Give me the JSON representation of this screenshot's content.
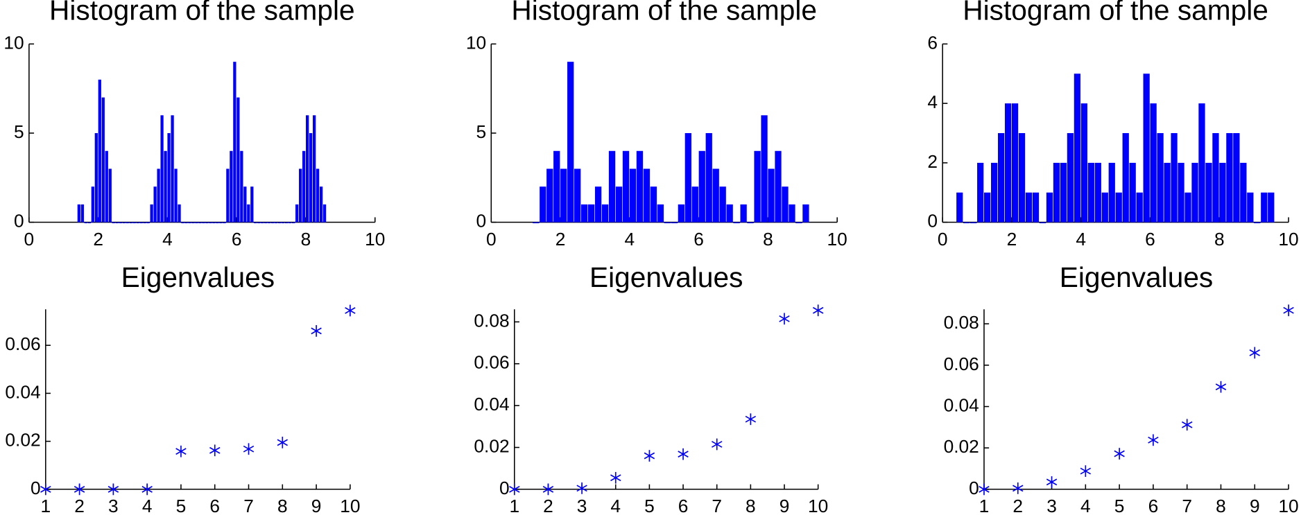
{
  "chart_data": [
    {
      "type": "histogram",
      "title": "Histogram of the sample",
      "color": "#0000ff",
      "bins": [
        1.4,
        1.5,
        1.6,
        1.7,
        1.8,
        1.9,
        2,
        2.1,
        2.2,
        2.3,
        2.4,
        2.5,
        2.6,
        2.7,
        2.8,
        2.9,
        3,
        3.1,
        3.2,
        3.3,
        3.4,
        3.5,
        3.6,
        3.7,
        3.8,
        3.9,
        4,
        4.1,
        4.2,
        4.3,
        4.4,
        4.5,
        4.6,
        4.7,
        4.8,
        4.9,
        5,
        5.1,
        5.2,
        5.3,
        5.4,
        5.5,
        5.6,
        5.7,
        5.8,
        5.9,
        6,
        6.1,
        6.2,
        6.3,
        6.4,
        6.5,
        6.6,
        6.7,
        6.8,
        6.9,
        7,
        7.1,
        7.2,
        7.3,
        7.4,
        7.5,
        7.6,
        7.7,
        7.8,
        7.9,
        8,
        8.1,
        8.2,
        8.3,
        8.4,
        8.5,
        8.6
      ],
      "values": [
        1,
        1,
        0,
        0,
        2,
        5,
        8,
        7,
        4,
        3,
        0,
        0,
        0,
        0,
        0,
        0,
        0,
        0,
        0,
        0,
        0,
        1,
        2,
        3,
        6,
        4,
        5,
        6,
        3,
        1,
        0,
        0,
        0,
        0,
        0,
        0,
        0,
        0,
        0,
        0,
        0,
        0,
        0,
        3,
        4,
        9,
        7,
        4,
        2,
        1,
        2,
        0,
        0,
        0,
        0,
        0,
        0,
        0,
        0,
        0,
        0,
        0,
        0,
        1,
        3,
        4,
        6,
        5,
        6,
        3,
        2,
        1
      ],
      "xlim": [
        0,
        10
      ],
      "xticks": [
        0,
        2,
        4,
        6,
        8,
        10
      ],
      "ylim": [
        0,
        10
      ],
      "yticks": [
        0,
        5,
        10
      ]
    },
    {
      "type": "histogram",
      "title": "Histogram of the sample",
      "color": "#0000ff",
      "bins": [
        1.2,
        1.4,
        1.6,
        1.8,
        2,
        2.2,
        2.4,
        2.6,
        2.8,
        3,
        3.2,
        3.4,
        3.6,
        3.8,
        4,
        4.2,
        4.4,
        4.6,
        4.8,
        5,
        5.2,
        5.4,
        5.6,
        5.8,
        6,
        6.2,
        6.4,
        6.6,
        6.8,
        7,
        7.2,
        7.4,
        7.6,
        7.8,
        8,
        8.2,
        8.4,
        8.6,
        8.8,
        9,
        9.2
      ],
      "values": [
        0,
        2,
        3,
        4,
        3,
        9,
        3,
        1,
        1,
        2,
        1,
        4,
        2,
        4,
        3,
        4,
        3,
        2,
        1,
        0,
        0,
        1,
        5,
        2,
        4,
        5,
        3,
        2,
        1,
        0,
        1,
        0,
        4,
        6,
        3,
        4,
        2,
        1,
        0,
        1
      ],
      "xlim": [
        0,
        10
      ],
      "xticks": [
        0,
        2,
        4,
        6,
        8,
        10
      ],
      "ylim": [
        0,
        10
      ],
      "yticks": [
        0,
        5,
        10
      ]
    },
    {
      "type": "histogram",
      "title": "Histogram of the sample",
      "color": "#0000ff",
      "bins": [
        0.4,
        0.6,
        0.8,
        1,
        1.2,
        1.4,
        1.6,
        1.8,
        2,
        2.2,
        2.4,
        2.6,
        2.8,
        3,
        3.2,
        3.4,
        3.6,
        3.8,
        4,
        4.2,
        4.4,
        4.6,
        4.8,
        5,
        5.2,
        5.4,
        5.6,
        5.8,
        6,
        6.2,
        6.4,
        6.6,
        6.8,
        7,
        7.2,
        7.4,
        7.6,
        7.8,
        8,
        8.2,
        8.4,
        8.6,
        8.8,
        9,
        9.2,
        9.4,
        9.6
      ],
      "values": [
        1,
        0,
        0,
        2,
        1,
        2,
        3,
        4,
        4,
        3,
        1,
        1,
        0,
        1,
        2,
        2,
        3,
        5,
        4,
        2,
        2,
        1,
        2,
        1,
        3,
        2,
        1,
        5,
        4,
        3,
        2,
        3,
        2,
        1,
        2,
        4,
        2,
        3,
        2,
        3,
        3,
        2,
        1,
        0,
        1,
        1
      ],
      "xlim": [
        0,
        10
      ],
      "xticks": [
        0,
        2,
        4,
        6,
        8,
        10
      ],
      "ylim": [
        0,
        6
      ],
      "yticks": [
        0,
        2,
        4,
        6
      ]
    },
    {
      "type": "scatter",
      "title": "Eigenvalues",
      "color": "#0000ff",
      "x": [
        1,
        2,
        3,
        4,
        5,
        6,
        7,
        8,
        9,
        10
      ],
      "values": [
        0,
        0,
        0,
        0,
        0.0158,
        0.0162,
        0.0168,
        0.0195,
        0.066,
        0.0745
      ],
      "xlim": [
        1,
        10
      ],
      "xticks": [
        1,
        2,
        3,
        4,
        5,
        6,
        7,
        8,
        9,
        10
      ],
      "ylim": [
        0,
        0.075
      ],
      "yticks": [
        0,
        0.02,
        0.04,
        0.06
      ]
    },
    {
      "type": "scatter",
      "title": "Eigenvalues",
      "color": "#0000ff",
      "x": [
        1,
        2,
        3,
        4,
        5,
        6,
        7,
        8,
        9,
        10
      ],
      "values": [
        0,
        0,
        0.0005,
        0.0055,
        0.016,
        0.0168,
        0.0215,
        0.0335,
        0.0815,
        0.0855
      ],
      "xlim": [
        1,
        10
      ],
      "xticks": [
        1,
        2,
        3,
        4,
        5,
        6,
        7,
        8,
        9,
        10
      ],
      "ylim": [
        0,
        0.086
      ],
      "yticks": [
        0,
        0.02,
        0.04,
        0.06,
        0.08
      ]
    },
    {
      "type": "scatter",
      "title": "Eigenvalues",
      "color": "#0000ff",
      "x": [
        1,
        2,
        3,
        4,
        5,
        6,
        7,
        8,
        9,
        10
      ],
      "values": [
        0,
        0.0005,
        0.0035,
        0.0088,
        0.0172,
        0.0238,
        0.0312,
        0.0495,
        0.066,
        0.0865
      ],
      "xlim": [
        1,
        10
      ],
      "xticks": [
        1,
        2,
        3,
        4,
        5,
        6,
        7,
        8,
        9,
        10
      ],
      "ylim": [
        0,
        0.087
      ],
      "yticks": [
        0,
        0.02,
        0.04,
        0.06,
        0.08
      ]
    }
  ]
}
